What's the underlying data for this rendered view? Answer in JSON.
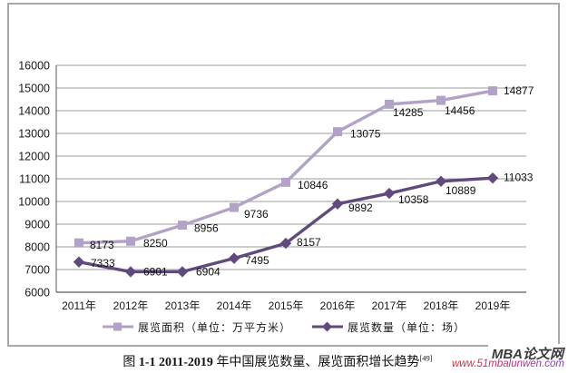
{
  "colors": {
    "frame_border": "#a9a9a9",
    "grid": "#9b9b9b",
    "axis": "#767676",
    "text": "#111111",
    "watermark_brand": "#3b3b3b",
    "watermark_url_fallback": "#e02b5f",
    "watermark_url_start": "#f01f1f",
    "watermark_url_end": "#7d3bd4"
  },
  "chart_data": {
    "type": "line",
    "title": "",
    "xlabel": "",
    "ylabel": "",
    "grid": true,
    "legend_position": "bottom",
    "ylim": [
      6000,
      16000
    ],
    "ytick_step": 1000,
    "categories": [
      "2011年",
      "2012年",
      "2013年",
      "2014年",
      "2015年",
      "2016年",
      "2017年",
      "2018年",
      "2019年"
    ],
    "series": [
      {
        "name": "展览面积（单位：万平方米）",
        "marker": "square",
        "color": "#b3a2c7",
        "values": [
          8173,
          8250,
          8956,
          9736,
          10846,
          13075,
          14285,
          14456,
          14877
        ],
        "label_offsets": [
          [
            12,
            3
          ],
          [
            14,
            3
          ],
          [
            13,
            4
          ],
          [
            11,
            8
          ],
          [
            13,
            4
          ],
          [
            14,
            3
          ],
          [
            4,
            10
          ],
          [
            4,
            12
          ],
          [
            12,
            1
          ]
        ]
      },
      {
        "name": "展览数量（单位：场）",
        "marker": "diamond",
        "color": "#604a7b",
        "values": [
          7333,
          6901,
          6904,
          7495,
          8157,
          9892,
          10358,
          10889,
          11033
        ],
        "label_offsets": [
          [
            13,
            2
          ],
          [
            14,
            1
          ],
          [
            15,
            1
          ],
          [
            12,
            3
          ],
          [
            12,
            0
          ],
          [
            12,
            5
          ],
          [
            10,
            8
          ],
          [
            5,
            11
          ],
          [
            12,
            0
          ]
        ]
      }
    ]
  },
  "caption": {
    "fig_prefix": "图 ",
    "fig_label": "1-1 2011-2019 ",
    "text": "年中国展览数量、展览面积增长趋势",
    "ref_mark": "[49]"
  },
  "watermark": {
    "brand": "MBA论文网",
    "url": "www.51mbalunwen.com"
  }
}
